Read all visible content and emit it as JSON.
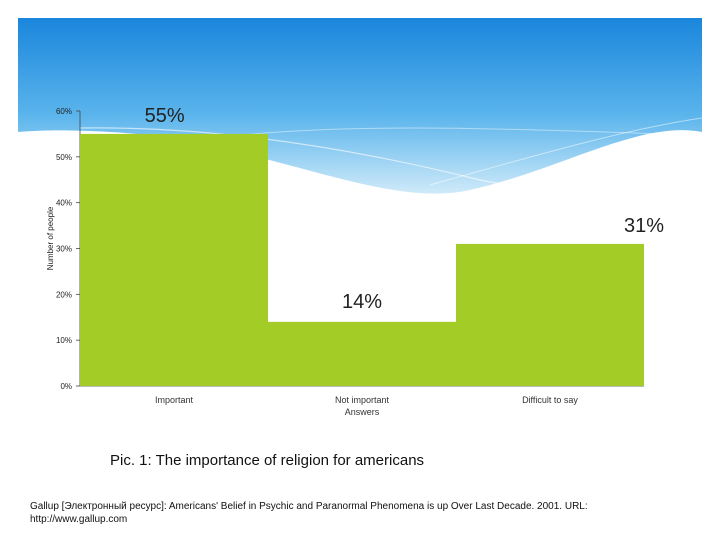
{
  "chart_data": {
    "type": "bar",
    "categories": [
      "Important",
      "Not important",
      "Difficult to say"
    ],
    "values": [
      55,
      14,
      31
    ],
    "data_labels": [
      "55%",
      "14%",
      "31%"
    ],
    "xlabel": "Answers",
    "ylabel": "Number of people",
    "ylim": [
      0,
      60
    ],
    "y_ticks": [
      "0%",
      "10%",
      "20%",
      "30%",
      "40%",
      "50%",
      "60%"
    ],
    "bar_color": "#a3cc27",
    "grid": false,
    "legend": "none"
  },
  "caption": "Pic. 1: The importance of religion for americans",
  "source": "Gallup [Электронный ресурс]: Americans' Belief in Psychic and Paranormal Phenomena is up Over Last Decade. 2001. URL: http://www.gallup.com",
  "colors": {
    "sky_top": "#1e8fe0",
    "sky_bottom": "#bfe3f8",
    "bar": "#a3cc27"
  }
}
